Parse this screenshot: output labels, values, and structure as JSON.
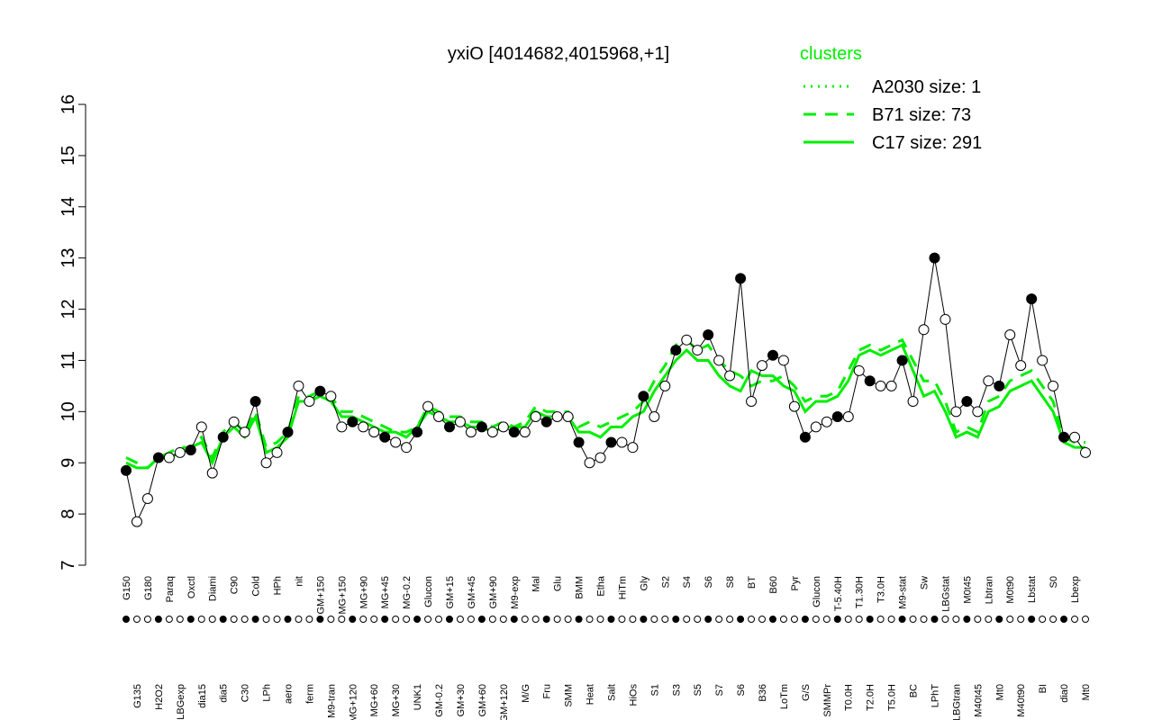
{
  "chart_data": {
    "type": "line",
    "title": "yxiO [4014682,4015968,+1]",
    "legend_title": "clusters",
    "categories": [
      "G150",
      "G135",
      "G180",
      "H2O2",
      "Paraq",
      "LBGexp",
      "Oxctl",
      "dia15",
      "Diami",
      "dia5",
      "C90",
      "C30",
      "Cold",
      "LPh",
      "HPh",
      "aero",
      "nit",
      "ferm",
      "GM+150",
      "M9-tran",
      "MG+150",
      "MG+120",
      "MG+90",
      "MG+60",
      "MG+45",
      "MG+30",
      "MG-0.2",
      "UNK1",
      "Glucon",
      "GM-0.2",
      "GM+15",
      "GM+30",
      "GM+45",
      "GM+60",
      "GM+90",
      "GM+120",
      "M9-exp",
      "M/G",
      "Mal",
      "Fru",
      "Glu",
      "SMM",
      "BMM",
      "Heat",
      "Etha",
      "Salt",
      "HiTm",
      "HiOs",
      "Gly",
      "S1",
      "S2",
      "S3",
      "S4",
      "S5",
      "S6",
      "S7",
      "S8",
      "S6",
      "BT",
      "B36",
      "B60",
      "LoTm",
      "Pyr",
      "G/S",
      "Glucon",
      "SMMPr",
      "T-5.40H",
      "T0.0H",
      "T1.30H",
      "T2.0H",
      "T3.0H",
      "T5.0H",
      "M9-stat",
      "BC",
      "Sw",
      "LPhT",
      "LBGstat",
      "LBGtran",
      "M0t45",
      "M40t45",
      "Lbtran",
      "Mt0",
      "M0t90",
      "M40t90",
      "Lbstat",
      "BI",
      "S0",
      "dia0",
      "Lbexp",
      "Mt0"
    ],
    "values": [
      8.85,
      7.85,
      8.3,
      9.1,
      9.1,
      9.2,
      9.25,
      9.7,
      8.8,
      9.5,
      9.8,
      9.6,
      10.2,
      9.0,
      9.2,
      9.6,
      10.5,
      10.2,
      10.4,
      10.3,
      9.7,
      9.8,
      9.7,
      9.6,
      9.5,
      9.4,
      9.3,
      9.6,
      10.1,
      9.9,
      9.7,
      9.8,
      9.6,
      9.7,
      9.6,
      9.7,
      9.6,
      9.6,
      9.9,
      9.8,
      9.9,
      9.9,
      9.4,
      9.0,
      9.1,
      9.4,
      9.4,
      9.3,
      10.3,
      9.9,
      10.5,
      11.2,
      11.4,
      11.2,
      11.5,
      11.0,
      10.7,
      12.6,
      10.2,
      10.9,
      11.1,
      11.0,
      10.1,
      9.5,
      9.7,
      9.8,
      9.9,
      9.9,
      10.8,
      10.6,
      10.5,
      10.5,
      11.0,
      10.2,
      11.6,
      13.0,
      11.8,
      10.0,
      10.2,
      10.0,
      10.6,
      10.5,
      11.5,
      10.9,
      12.2,
      11.0,
      10.5,
      9.5,
      9.5,
      9.2
    ],
    "color": "#000000",
    "series": [
      {
        "name": "A2030 size: 1",
        "color": "#00ee00",
        "dash": "dotted"
      },
      {
        "name": "B71 size: 73",
        "color": "#00ee00",
        "dash": "dashed",
        "values": [
          9.1,
          9.0,
          8.9,
          9.1,
          9.2,
          9.3,
          9.3,
          9.5,
          9.1,
          9.6,
          9.8,
          9.6,
          10.0,
          9.3,
          9.4,
          9.6,
          10.3,
          10.3,
          10.4,
          10.3,
          10.0,
          10.0,
          9.9,
          9.8,
          9.7,
          9.6,
          9.6,
          9.7,
          10.1,
          10.0,
          9.9,
          9.9,
          9.8,
          9.8,
          9.7,
          9.8,
          9.7,
          9.8,
          10.1,
          10.0,
          10.0,
          10.0,
          9.7,
          9.8,
          9.7,
          9.8,
          9.9,
          10.0,
          10.2,
          10.6,
          10.9,
          11.3,
          11.4,
          11.2,
          11.3,
          11.0,
          10.8,
          10.7,
          10.5,
          10.6,
          10.6,
          10.7,
          10.5,
          10.2,
          10.3,
          10.3,
          10.4,
          10.8,
          11.2,
          11.3,
          11.2,
          11.3,
          11.4,
          11.0,
          10.6,
          10.6,
          10.2,
          9.6,
          9.7,
          9.6,
          10.2,
          10.3,
          10.6,
          10.7,
          10.8,
          10.5,
          10.2,
          9.5,
          9.4,
          9.4
        ]
      },
      {
        "name": "C17 size: 291",
        "color": "#00ee00",
        "dash": "solid",
        "values": [
          9.0,
          8.9,
          8.9,
          9.1,
          9.1,
          9.2,
          9.3,
          9.4,
          9.0,
          9.5,
          9.7,
          9.5,
          9.9,
          9.2,
          9.3,
          9.5,
          10.2,
          10.2,
          10.3,
          10.2,
          9.9,
          9.9,
          9.8,
          9.7,
          9.6,
          9.6,
          9.5,
          9.7,
          10.0,
          9.9,
          9.8,
          9.8,
          9.7,
          9.7,
          9.6,
          9.7,
          9.7,
          9.7,
          10.0,
          9.9,
          9.9,
          9.9,
          9.6,
          9.6,
          9.5,
          9.7,
          9.7,
          9.9,
          10.0,
          10.4,
          10.7,
          11.0,
          11.2,
          11.0,
          11.0,
          10.7,
          10.5,
          10.4,
          10.8,
          10.7,
          10.7,
          10.5,
          10.4,
          10.0,
          10.2,
          10.2,
          10.3,
          10.6,
          11.1,
          11.2,
          11.1,
          11.2,
          11.3,
          10.8,
          10.3,
          10.4,
          10.0,
          9.5,
          9.6,
          9.5,
          10.0,
          10.1,
          10.4,
          10.5,
          10.6,
          10.3,
          10.0,
          9.4,
          9.3,
          9.3
        ]
      }
    ],
    "ylim": [
      7,
      16
    ],
    "yticks": [
      7,
      8,
      9,
      10,
      11,
      12,
      13,
      14,
      15,
      16
    ]
  }
}
